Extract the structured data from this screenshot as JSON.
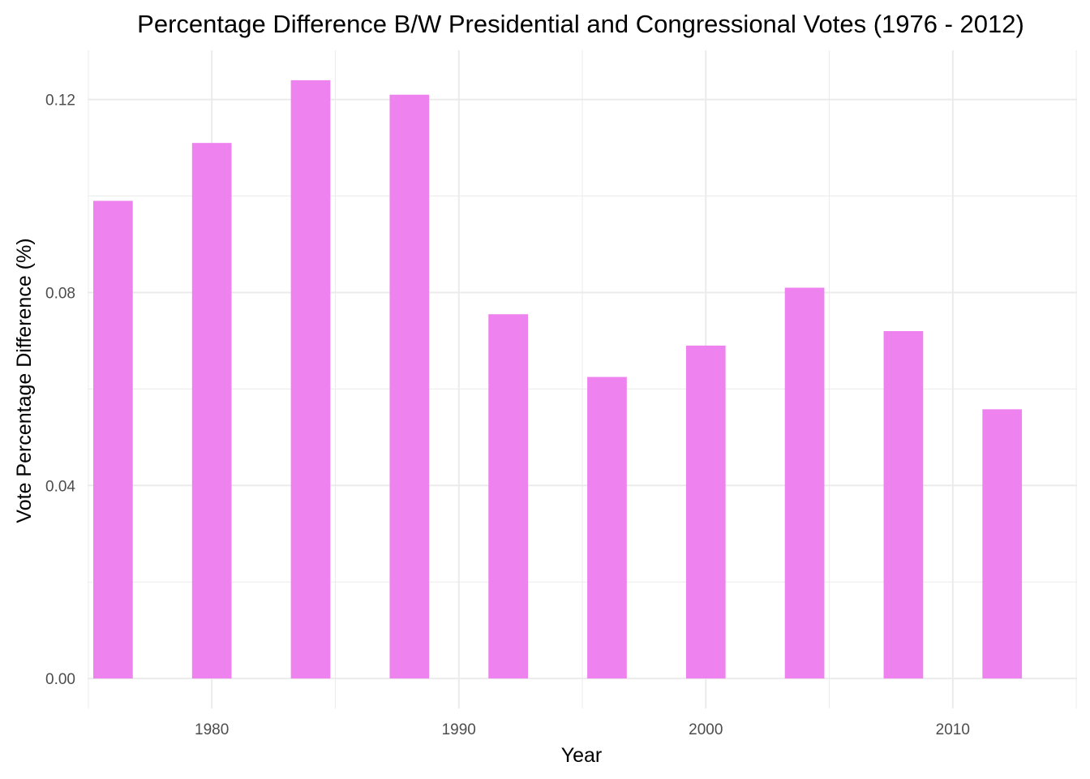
{
  "chart_data": {
    "type": "bar",
    "title": "Percentage Difference B/W Presidential and Congressional Votes (1976 - 2012)",
    "xlabel": "Year",
    "ylabel": "Vote Percentage Difference (%)",
    "x": [
      1976,
      1980,
      1984,
      1988,
      1992,
      1996,
      2000,
      2004,
      2008,
      2012
    ],
    "values": [
      0.099,
      0.111,
      0.124,
      0.121,
      0.0755,
      0.0625,
      0.069,
      0.081,
      0.072,
      0.0558
    ],
    "xlim": [
      1974.97,
      2015.03
    ],
    "ylim": [
      -0.0062,
      0.1302
    ],
    "x_ticks": [
      1980,
      1990,
      2000,
      2010
    ],
    "x_tick_labels": [
      "1980",
      "1990",
      "2000",
      "2010"
    ],
    "y_ticks": [
      0,
      0.04,
      0.08,
      0.12
    ],
    "y_tick_labels": [
      "0.00",
      "0.04",
      "0.08",
      "0.12"
    ],
    "bar_width": 1.6,
    "grid": true,
    "colors": {
      "bar": "#EE82EE",
      "grid": "#EBEBEB",
      "tick_text": "#4D4D4D",
      "text": "#000000"
    }
  }
}
